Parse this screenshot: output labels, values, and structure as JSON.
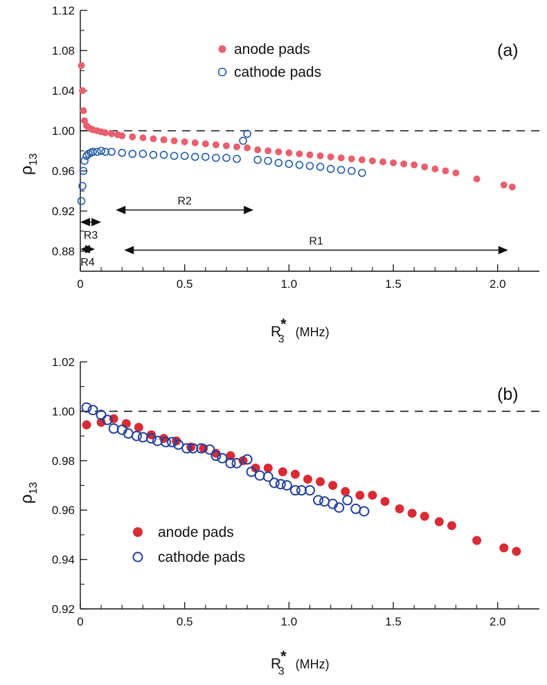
{
  "chart_data": [
    {
      "type": "scatter",
      "panel_label": "(a)",
      "xlabel": {
        "base": "R",
        "sup": "*",
        "sub": "3",
        "unit": "(MHz)"
      },
      "ylabel": {
        "base": "ρ",
        "sub": "13"
      },
      "xlim": [
        0,
        2.2
      ],
      "ylim": [
        0.86,
        1.12
      ],
      "xticks": [
        0,
        0.5,
        1.0,
        1.5,
        2.0
      ],
      "xtick_labels": [
        "0",
        "0.5",
        "1.0",
        "1.5",
        "2.0"
      ],
      "yticks": [
        0.88,
        0.92,
        0.96,
        1.0,
        1.04,
        1.08,
        1.12
      ],
      "ytick_labels": [
        "0.88",
        "0.92",
        "0.96",
        "1.00",
        "1.04",
        "1.08",
        "1.12"
      ],
      "reference_line": 1.0,
      "legend_position": "top-center",
      "colors": {
        "anode": "#e8606e",
        "cathode": "#1f5aa6"
      },
      "series": [
        {
          "name": "anode pads",
          "marker": "filled",
          "x": [
            0.005,
            0.01,
            0.015,
            0.02,
            0.03,
            0.04,
            0.05,
            0.06,
            0.08,
            0.1,
            0.12,
            0.15,
            0.18,
            0.2,
            0.25,
            0.3,
            0.35,
            0.4,
            0.45,
            0.5,
            0.55,
            0.6,
            0.65,
            0.7,
            0.75,
            0.8,
            0.85,
            0.9,
            0.95,
            1.0,
            1.05,
            1.1,
            1.15,
            1.2,
            1.25,
            1.3,
            1.35,
            1.4,
            1.45,
            1.5,
            1.55,
            1.6,
            1.65,
            1.7,
            1.75,
            1.8,
            1.9,
            2.03,
            2.07
          ],
          "y": [
            1.065,
            1.04,
            1.02,
            1.01,
            1.005,
            1.003,
            1.002,
            1.001,
            1.0,
            0.999,
            0.998,
            0.997,
            0.996,
            0.995,
            0.994,
            0.993,
            0.992,
            0.991,
            0.99,
            0.989,
            0.988,
            0.987,
            0.986,
            0.985,
            0.984,
            0.983,
            0.981,
            0.98,
            0.979,
            0.978,
            0.977,
            0.976,
            0.975,
            0.974,
            0.973,
            0.972,
            0.971,
            0.97,
            0.969,
            0.968,
            0.967,
            0.966,
            0.964,
            0.962,
            0.96,
            0.958,
            0.952,
            0.946,
            0.944
          ]
        },
        {
          "name": "cathode pads",
          "marker": "open",
          "x": [
            0.005,
            0.01,
            0.015,
            0.02,
            0.03,
            0.04,
            0.05,
            0.06,
            0.08,
            0.1,
            0.12,
            0.15,
            0.2,
            0.25,
            0.3,
            0.35,
            0.4,
            0.45,
            0.5,
            0.55,
            0.6,
            0.65,
            0.7,
            0.75,
            0.78,
            0.8,
            0.85,
            0.9,
            0.95,
            1.0,
            1.05,
            1.1,
            1.15,
            1.2,
            1.25,
            1.3,
            1.35
          ],
          "y": [
            0.93,
            0.945,
            0.96,
            0.97,
            0.975,
            0.977,
            0.978,
            0.979,
            0.979,
            0.98,
            0.979,
            0.979,
            0.978,
            0.977,
            0.977,
            0.976,
            0.976,
            0.975,
            0.975,
            0.974,
            0.974,
            0.973,
            0.973,
            0.972,
            0.99,
            0.997,
            0.971,
            0.97,
            0.968,
            0.967,
            0.966,
            0.965,
            0.964,
            0.962,
            0.961,
            0.96,
            0.958
          ]
        }
      ],
      "regions": [
        {
          "name": "R2",
          "from": 0.17,
          "to": 0.83,
          "y": 0.921
        },
        {
          "name": "R3",
          "from": 0.0,
          "to": 0.1,
          "y": 0.909
        },
        {
          "name": "R1",
          "from": 0.21,
          "to": 2.05,
          "y": 0.881
        },
        {
          "name": "R4",
          "from": 0.0,
          "to": 0.07,
          "y": 0.882
        }
      ]
    },
    {
      "type": "scatter",
      "panel_label": "(b)",
      "xlabel": {
        "base": "R",
        "sup": "*",
        "sub": "3",
        "unit": "(MHz)"
      },
      "ylabel": {
        "base": "ρ",
        "sub": "13"
      },
      "xlim": [
        0,
        2.2
      ],
      "ylim": [
        0.92,
        1.02
      ],
      "xticks": [
        0,
        0.5,
        1.0,
        1.5,
        2.0
      ],
      "xtick_labels": [
        "0",
        "0.5",
        "1.0",
        "1.5",
        "2.0"
      ],
      "yticks": [
        0.92,
        0.94,
        0.96,
        0.98,
        1.0,
        1.02
      ],
      "ytick_labels": [
        "0.92",
        "0.94",
        "0.96",
        "0.98",
        "1.00",
        "1.02"
      ],
      "reference_line": 1.0,
      "legend_position": "bottom-left",
      "colors": {
        "anode": "#d92b35",
        "cathode": "#1f3f9e"
      },
      "series": [
        {
          "name": "anode pads",
          "marker": "filled",
          "x": [
            0.03,
            0.1,
            0.16,
            0.22,
            0.28,
            0.34,
            0.4,
            0.46,
            0.53,
            0.59,
            0.65,
            0.72,
            0.78,
            0.84,
            0.9,
            0.97,
            1.03,
            1.09,
            1.15,
            1.21,
            1.27,
            1.34,
            1.4,
            1.46,
            1.53,
            1.59,
            1.65,
            1.72,
            1.78,
            1.9,
            2.03,
            2.09
          ],
          "y": [
            0.9945,
            0.9955,
            0.997,
            0.995,
            0.9935,
            0.9905,
            0.989,
            0.988,
            0.9855,
            0.985,
            0.983,
            0.982,
            0.98,
            0.977,
            0.977,
            0.9755,
            0.9745,
            0.9725,
            0.9715,
            0.97,
            0.9675,
            0.966,
            0.966,
            0.9635,
            0.9605,
            0.9587,
            0.9575,
            0.9553,
            0.9537,
            0.9477,
            0.9447,
            0.9433
          ]
        },
        {
          "name": "cathode pads",
          "marker": "open",
          "x": [
            0.03,
            0.06,
            0.1,
            0.13,
            0.16,
            0.2,
            0.23,
            0.27,
            0.3,
            0.34,
            0.37,
            0.41,
            0.44,
            0.47,
            0.51,
            0.54,
            0.58,
            0.62,
            0.65,
            0.68,
            0.72,
            0.75,
            0.8,
            0.82,
            0.86,
            0.9,
            0.93,
            0.96,
            0.99,
            1.03,
            1.06,
            1.1,
            1.14,
            1.17,
            1.21,
            1.24,
            1.28,
            1.32,
            1.36
          ],
          "y": [
            1.0015,
            1.0005,
            0.9985,
            0.9965,
            0.993,
            0.9925,
            0.991,
            0.99,
            0.9895,
            0.989,
            0.988,
            0.9875,
            0.9875,
            0.9865,
            0.985,
            0.985,
            0.985,
            0.9845,
            0.982,
            0.981,
            0.979,
            0.979,
            0.9805,
            0.9755,
            0.974,
            0.9735,
            0.971,
            0.9705,
            0.97,
            0.968,
            0.968,
            0.968,
            0.964,
            0.9635,
            0.9625,
            0.961,
            0.964,
            0.9605,
            0.9595
          ]
        }
      ]
    }
  ]
}
